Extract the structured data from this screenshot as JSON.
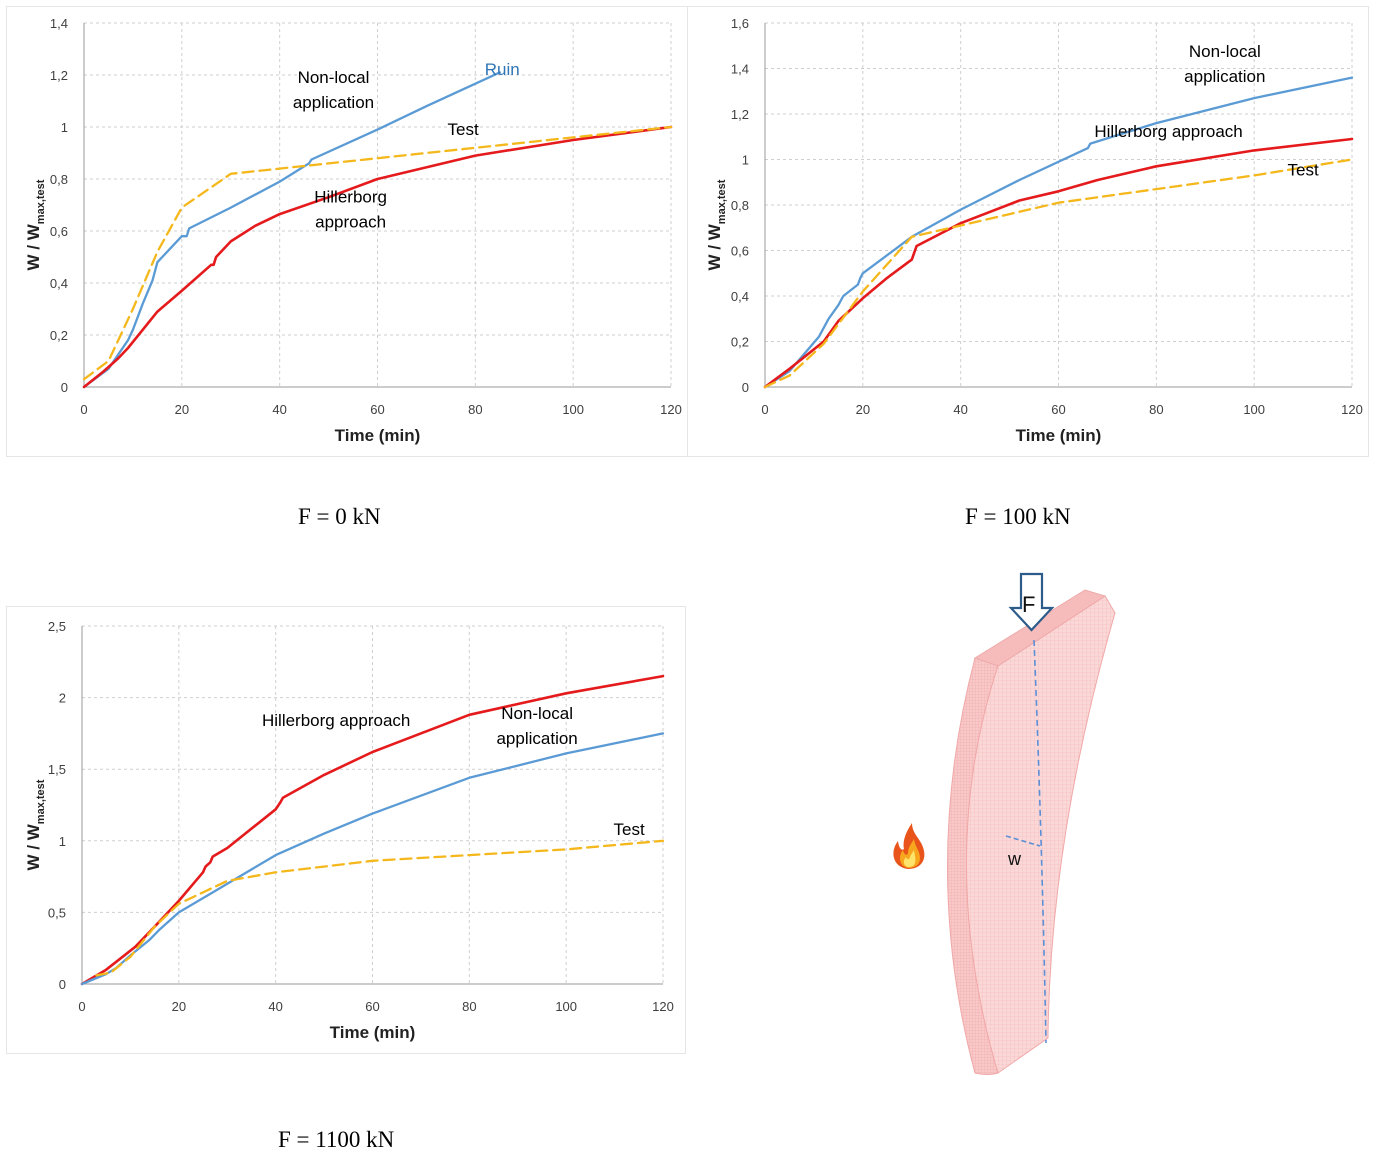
{
  "chart_data": [
    {
      "type": "line",
      "xlabel": "Time (min)",
      "ylabel": "W / W",
      "ylabel_sub": "max,test",
      "xlim": [
        0,
        120
      ],
      "ylim": [
        0,
        1.4
      ],
      "xticks": [
        0,
        20,
        40,
        60,
        80,
        100,
        120
      ],
      "xtick_labels": [
        "0",
        "20",
        "40",
        "60",
        "80",
        "100",
        "120"
      ],
      "yticks": [
        0,
        0.2,
        0.4,
        0.6,
        0.8,
        1,
        1.2,
        1.4
      ],
      "ytick_labels": [
        "0",
        "0,2",
        "0,4",
        "0,6",
        "0,8",
        "1",
        "1,2",
        "1,4"
      ],
      "grid": true,
      "caption": "F = 0 kN",
      "series": [
        {
          "key": "nonlocal",
          "color": "#5b9bd5",
          "dashed": false,
          "x": [
            0,
            5,
            9,
            10,
            12,
            14,
            15,
            20,
            21,
            21.5,
            30,
            40,
            46,
            46.5,
            60,
            70,
            85
          ],
          "y": [
            0,
            0.07,
            0.18,
            0.22,
            0.32,
            0.41,
            0.48,
            0.58,
            0.58,
            0.61,
            0.69,
            0.79,
            0.86,
            0.875,
            0.99,
            1.08,
            1.21
          ]
        },
        {
          "key": "hillerborg",
          "color": "#e41a1c",
          "dashed": false,
          "x": [
            0,
            4,
            7,
            9,
            12,
            15,
            20,
            26,
            26.5,
            27,
            30,
            35,
            40,
            50,
            60,
            80,
            100,
            120
          ],
          "y": [
            0,
            0.06,
            0.11,
            0.15,
            0.22,
            0.29,
            0.37,
            0.47,
            0.47,
            0.5,
            0.56,
            0.62,
            0.665,
            0.73,
            0.8,
            0.89,
            0.95,
            1.0
          ]
        },
        {
          "key": "test",
          "color": "#f5b81c",
          "dashed": true,
          "x": [
            0,
            5,
            10,
            15,
            20,
            30,
            40,
            50,
            60,
            80,
            100,
            120
          ],
          "y": [
            0.03,
            0.1,
            0.3,
            0.52,
            0.69,
            0.82,
            0.84,
            0.86,
            0.88,
            0.92,
            0.96,
            1.0
          ]
        }
      ],
      "annotations": [
        {
          "lines": [
            "Non-local",
            "application"
          ],
          "x": 51,
          "y": 1.17,
          "color": "#000000"
        },
        {
          "lines": [
            "Ruin"
          ],
          "x": 85.5,
          "y": 1.2,
          "color": "#2e75b6"
        },
        {
          "lines": [
            "Test"
          ],
          "x": 77.5,
          "y": 0.97,
          "color": "#000000"
        },
        {
          "lines": [
            "Hillerborg",
            "approach"
          ],
          "x": 54.5,
          "y": 0.71,
          "color": "#000000"
        }
      ]
    },
    {
      "type": "line",
      "xlabel": "Time (min)",
      "ylabel": "W / W",
      "ylabel_sub": "max,test",
      "xlim": [
        0,
        120
      ],
      "ylim": [
        0,
        1.6
      ],
      "xticks": [
        0,
        20,
        40,
        60,
        80,
        100,
        120
      ],
      "xtick_labels": [
        "0",
        "20",
        "40",
        "60",
        "80",
        "100",
        "120"
      ],
      "yticks": [
        0,
        0.2,
        0.4,
        0.6,
        0.8,
        1,
        1.2,
        1.4,
        1.6
      ],
      "ytick_labels": [
        "0",
        "0,2",
        "0,4",
        "0,6",
        "0,8",
        "1",
        "1,2",
        "1,4",
        "1,6"
      ],
      "grid": true,
      "caption": "F = 100 kN",
      "series": [
        {
          "key": "nonlocal",
          "color": "#5b9bd5",
          "dashed": false,
          "x": [
            0,
            5,
            11,
            13,
            15,
            16,
            19,
            19.5,
            20,
            25,
            30,
            40,
            52,
            66,
            66.5,
            80,
            100,
            120
          ],
          "y": [
            0,
            0.07,
            0.22,
            0.3,
            0.36,
            0.4,
            0.45,
            0.48,
            0.5,
            0.58,
            0.66,
            0.78,
            0.91,
            1.05,
            1.07,
            1.16,
            1.27,
            1.36
          ]
        },
        {
          "key": "hillerborg",
          "color": "#e41a1c",
          "dashed": false,
          "x": [
            0,
            5,
            12,
            15,
            20,
            25,
            30,
            30.5,
            31,
            40,
            52,
            60,
            68,
            80,
            100,
            120
          ],
          "y": [
            0,
            0.08,
            0.2,
            0.29,
            0.39,
            0.48,
            0.56,
            0.59,
            0.62,
            0.72,
            0.82,
            0.86,
            0.91,
            0.97,
            1.04,
            1.09
          ]
        },
        {
          "key": "test",
          "color": "#f5b81c",
          "dashed": true,
          "x": [
            0,
            5,
            12,
            20,
            30,
            40,
            50,
            60,
            80,
            100,
            120
          ],
          "y": [
            0,
            0.05,
            0.19,
            0.42,
            0.66,
            0.71,
            0.76,
            0.81,
            0.87,
            0.93,
            1.0
          ]
        }
      ],
      "annotations": [
        {
          "lines": [
            "Non-local",
            "application"
          ],
          "x": 94,
          "y": 1.45,
          "color": "#000000"
        },
        {
          "lines": [
            "Hillerborg approach"
          ],
          "x": 82.5,
          "y": 1.1,
          "color": "#000000"
        },
        {
          "lines": [
            "Test"
          ],
          "x": 110,
          "y": 0.93,
          "color": "#000000"
        }
      ]
    },
    {
      "type": "line",
      "xlabel": "Time (min)",
      "ylabel": "W / W",
      "ylabel_sub": "max,test",
      "xlim": [
        0,
        120
      ],
      "ylim": [
        0,
        2.5
      ],
      "xticks": [
        0,
        20,
        40,
        60,
        80,
        100,
        120
      ],
      "xtick_labels": [
        "0",
        "20",
        "40",
        "60",
        "80",
        "100",
        "120"
      ],
      "yticks": [
        0,
        0.5,
        1,
        1.5,
        2,
        2.5
      ],
      "ytick_labels": [
        "0",
        "0,5",
        "1",
        "1,5",
        "2",
        "2,5"
      ],
      "grid": true,
      "caption": "F = 1100 kN",
      "series": [
        {
          "key": "hillerborg",
          "color": "#e41a1c",
          "dashed": false,
          "x": [
            0,
            5,
            11,
            15,
            20,
            25,
            25.5,
            26.5,
            27,
            30,
            40,
            41,
            41.5,
            50,
            60,
            80,
            100,
            120
          ],
          "y": [
            0,
            0.1,
            0.26,
            0.4,
            0.58,
            0.78,
            0.82,
            0.85,
            0.89,
            0.95,
            1.22,
            1.27,
            1.3,
            1.46,
            1.62,
            1.88,
            2.03,
            2.15
          ]
        },
        {
          "key": "nonlocal",
          "color": "#5b9bd5",
          "dashed": false,
          "x": [
            0,
            5,
            7,
            10,
            14,
            16,
            20,
            30,
            40,
            50,
            60,
            80,
            100,
            120
          ],
          "y": [
            0,
            0.07,
            0.11,
            0.2,
            0.31,
            0.38,
            0.5,
            0.7,
            0.9,
            1.05,
            1.19,
            1.44,
            1.61,
            1.75
          ]
        },
        {
          "key": "test",
          "color": "#f5b81c",
          "dashed": true,
          "x": [
            3,
            6,
            10,
            15,
            20,
            30,
            40,
            60,
            80,
            100,
            120
          ],
          "y": [
            0.06,
            0.08,
            0.19,
            0.4,
            0.56,
            0.72,
            0.78,
            0.86,
            0.9,
            0.94,
            1.0
          ]
        }
      ],
      "annotations": [
        {
          "lines": [
            "Hillerborg approach"
          ],
          "x": 52.5,
          "y": 1.8,
          "color": "#000000"
        },
        {
          "lines": [
            "Non-local",
            "application"
          ],
          "x": 94,
          "y": 1.85,
          "color": "#000000"
        },
        {
          "lines": [
            "Test"
          ],
          "x": 113,
          "y": 1.04,
          "color": "#000000"
        }
      ]
    }
  ],
  "illustration": {
    "force_label": "F",
    "deflection_label": "w",
    "colors": {
      "panel": "#f8c6c6",
      "panel_edge": "#f1a9a9",
      "dashed": "#5b8fd6",
      "arrow": "#2e5c8a"
    }
  }
}
